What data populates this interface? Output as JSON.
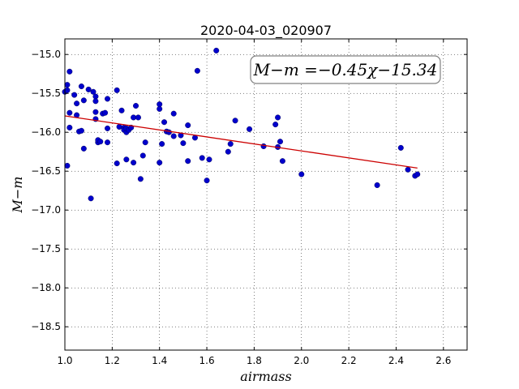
{
  "chart_data": {
    "type": "scatter",
    "title": "2020-04-03_020907",
    "xlabel": "airmass",
    "ylabel": "M−m",
    "xlim": [
      1.0,
      2.7
    ],
    "ylim": [
      -14.8,
      -18.8
    ],
    "y_inverted": true,
    "xticks": [
      1.0,
      1.2,
      1.4,
      1.6,
      1.8,
      2.0,
      2.2,
      2.4,
      2.6
    ],
    "xtick_labels": [
      "1.0",
      "1.2",
      "1.4",
      "1.6",
      "1.8",
      "2.0",
      "2.2",
      "2.4",
      "2.6"
    ],
    "yticks": [
      -15.0,
      -15.5,
      -16.0,
      -16.5,
      -17.0,
      -17.5,
      -18.0,
      -18.5
    ],
    "ytick_labels": [
      "−15.0",
      "−15.5",
      "−16.0",
      "−16.5",
      "−17.0",
      "−17.5",
      "−18.0",
      "−18.5"
    ],
    "grid": true,
    "annotation": "M−m =−0.45χ−15.34",
    "series": [
      {
        "type": "scatter",
        "color": "#0000cc",
        "points": [
          [
            1.0,
            -15.48
          ],
          [
            1.01,
            -15.46
          ],
          [
            1.01,
            -15.39
          ],
          [
            1.02,
            -15.22
          ],
          [
            1.02,
            -15.75
          ],
          [
            1.02,
            -15.94
          ],
          [
            1.01,
            -16.43
          ],
          [
            1.04,
            -15.52
          ],
          [
            1.05,
            -15.63
          ],
          [
            1.05,
            -15.78
          ],
          [
            1.06,
            -15.99
          ],
          [
            1.07,
            -15.98
          ],
          [
            1.07,
            -15.41
          ],
          [
            1.08,
            -15.59
          ],
          [
            1.08,
            -16.21
          ],
          [
            1.1,
            -15.45
          ],
          [
            1.12,
            -15.48
          ],
          [
            1.11,
            -16.85
          ],
          [
            1.13,
            -15.54
          ],
          [
            1.13,
            -15.6
          ],
          [
            1.13,
            -15.74
          ],
          [
            1.13,
            -15.83
          ],
          [
            1.14,
            -16.13
          ],
          [
            1.14,
            -16.1
          ],
          [
            1.15,
            -16.12
          ],
          [
            1.16,
            -15.76
          ],
          [
            1.17,
            -15.75
          ],
          [
            1.18,
            -16.13
          ],
          [
            1.18,
            -15.57
          ],
          [
            1.18,
            -15.95
          ],
          [
            1.22,
            -15.46
          ],
          [
            1.22,
            -16.4
          ],
          [
            1.23,
            -15.93
          ],
          [
            1.24,
            -15.72
          ],
          [
            1.25,
            -15.94
          ],
          [
            1.25,
            -15.97
          ],
          [
            1.26,
            -16.0
          ],
          [
            1.26,
            -15.95
          ],
          [
            1.26,
            -16.35
          ],
          [
            1.27,
            -15.97
          ],
          [
            1.28,
            -15.94
          ],
          [
            1.29,
            -16.39
          ],
          [
            1.29,
            -15.81
          ],
          [
            1.3,
            -15.66
          ],
          [
            1.31,
            -15.81
          ],
          [
            1.32,
            -16.6
          ],
          [
            1.33,
            -16.3
          ],
          [
            1.34,
            -16.13
          ],
          [
            1.4,
            -16.39
          ],
          [
            1.4,
            -15.64
          ],
          [
            1.4,
            -15.7
          ],
          [
            1.41,
            -16.15
          ],
          [
            1.42,
            -15.87
          ],
          [
            1.43,
            -15.99
          ],
          [
            1.44,
            -16.0
          ],
          [
            1.46,
            -15.76
          ],
          [
            1.46,
            -16.05
          ],
          [
            1.49,
            -16.04
          ],
          [
            1.5,
            -16.14
          ],
          [
            1.52,
            -15.91
          ],
          [
            1.52,
            -16.37
          ],
          [
            1.55,
            -16.07
          ],
          [
            1.56,
            -15.21
          ],
          [
            1.58,
            -16.33
          ],
          [
            1.6,
            -16.62
          ],
          [
            1.61,
            -16.35
          ],
          [
            1.64,
            -14.95
          ],
          [
            1.69,
            -16.25
          ],
          [
            1.7,
            -16.15
          ],
          [
            1.72,
            -15.85
          ],
          [
            1.78,
            -15.96
          ],
          [
            1.84,
            -16.18
          ],
          [
            1.89,
            -15.9
          ],
          [
            1.9,
            -16.19
          ],
          [
            1.9,
            -15.81
          ],
          [
            1.91,
            -16.12
          ],
          [
            1.92,
            -16.37
          ],
          [
            2.0,
            -16.54
          ],
          [
            2.32,
            -16.68
          ],
          [
            2.42,
            -16.2
          ],
          [
            2.45,
            -16.48
          ],
          [
            2.48,
            -16.56
          ],
          [
            2.49,
            -16.54
          ]
        ]
      },
      {
        "type": "line",
        "color": "#cc0000",
        "points": [
          [
            1.0,
            -15.79
          ],
          [
            2.49,
            -16.46
          ]
        ]
      }
    ]
  }
}
